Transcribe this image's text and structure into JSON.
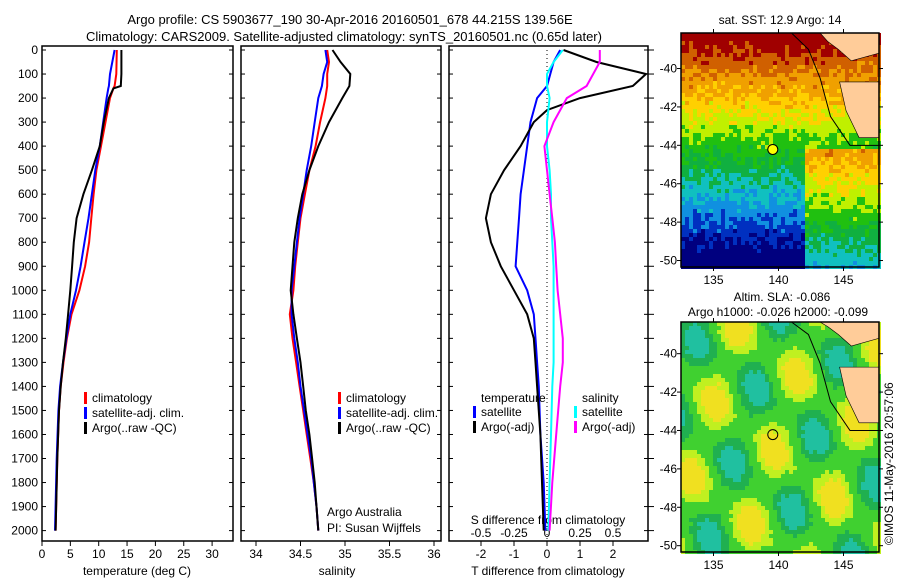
{
  "title_line1": "Argo profile: CS 5903677_190 30-Apr-2016 20160501_678 44.215S 139.56E",
  "title_line2": "Climatology: CARS2009. Satellite-adjusted climatology: synTS_20160501.nc (0.65d later)",
  "credit": "Argo Australia",
  "pi": "PI: Susan Wijffels",
  "timestamp": "©IMOS 11-May-2016 20:57:06",
  "colors": {
    "clim": "#ff0000",
    "sat": "#0000ff",
    "argo": "#000000",
    "sal_sat": "#00ffff",
    "sal_argo": "#ff00ff"
  },
  "chart_data": [
    {
      "type": "line",
      "name": "temperature",
      "xlabel": "temperature (deg C)",
      "ylabel": "",
      "xlim": [
        0,
        33
      ],
      "ylim": [
        2050,
        0
      ],
      "xticks": [
        0,
        5,
        10,
        15,
        20,
        25,
        30
      ],
      "yticks": [
        0,
        100,
        200,
        300,
        400,
        500,
        600,
        700,
        800,
        900,
        1000,
        1100,
        1200,
        1300,
        1400,
        1500,
        1600,
        1700,
        1800,
        1900,
        2000
      ],
      "legend": [
        "climatology",
        "satellite-adj. clim.",
        "Argo(..raw -QC)"
      ],
      "depth": [
        0,
        100,
        150,
        160,
        200,
        300,
        400,
        500,
        600,
        700,
        800,
        900,
        1000,
        1100,
        1200,
        1300,
        1400,
        1500,
        1700,
        2000
      ],
      "series": [
        {
          "name": "climatology",
          "values": [
            13.2,
            13.1,
            12.8,
            12.6,
            12.0,
            11.2,
            10.4,
            9.6,
            9.1,
            8.7,
            8.3,
            7.6,
            6.6,
            5.2,
            4.4,
            3.8,
            3.3,
            3.0,
            2.7,
            2.4
          ]
        },
        {
          "name": "satellite-adj. clim.",
          "values": [
            12.8,
            12.0,
            11.8,
            11.7,
            11.4,
            10.8,
            10.2,
            9.4,
            8.8,
            8.2,
            7.5,
            6.8,
            6.0,
            5.0,
            4.3,
            3.7,
            3.2,
            2.9,
            2.6,
            2.3
          ]
        },
        {
          "name": "Argo(..raw -QC)",
          "values": [
            14.0,
            14.0,
            13.9,
            12.6,
            11.8,
            10.9,
            10.2,
            8.8,
            7.3,
            6.1,
            5.6,
            5.3,
            5.0,
            4.6,
            4.2,
            3.7,
            3.3,
            3.0,
            2.7,
            2.4
          ]
        }
      ]
    },
    {
      "type": "line",
      "name": "salinity",
      "xlabel": "salinity",
      "xlim": [
        33.83,
        36.05
      ],
      "ylim": [
        2050,
        0
      ],
      "xticks": [
        34,
        34.5,
        35,
        35.5,
        36
      ],
      "legend": [
        "climatology",
        "satellite-adj. clim.",
        "Argo(..raw -QC)"
      ],
      "depth": [
        0,
        50,
        100,
        150,
        200,
        300,
        400,
        500,
        600,
        700,
        800,
        900,
        1000,
        1100,
        1200,
        1300,
        1400,
        1500,
        1600,
        1700,
        1800,
        1900,
        2000
      ],
      "series": [
        {
          "name": "climatology",
          "values": [
            34.8,
            34.82,
            34.8,
            34.8,
            34.78,
            34.72,
            34.67,
            34.6,
            34.55,
            34.5,
            34.47,
            34.44,
            34.42,
            34.38,
            34.41,
            34.45,
            34.49,
            34.53,
            34.57,
            34.61,
            34.65,
            34.68,
            34.7
          ]
        },
        {
          "name": "satellite-adj. clim.",
          "values": [
            34.78,
            34.8,
            34.76,
            34.74,
            34.7,
            34.66,
            34.62,
            34.57,
            34.53,
            34.49,
            34.46,
            34.43,
            34.4,
            34.4,
            34.43,
            34.47,
            34.5,
            34.54,
            34.58,
            34.62,
            34.65,
            34.68,
            34.7
          ]
        },
        {
          "name": "Argo(..raw -QC)",
          "values": [
            34.86,
            34.95,
            35.06,
            35.05,
            34.97,
            34.82,
            34.7,
            34.6,
            34.52,
            34.47,
            34.43,
            34.41,
            34.39,
            34.42,
            34.46,
            34.5,
            34.53,
            34.56,
            34.6,
            34.63,
            34.66,
            34.68,
            34.7
          ]
        }
      ]
    },
    {
      "type": "line",
      "name": "differences",
      "xlabel": "T difference from climatology",
      "xlabel2": "S difference from climatology",
      "xlim": [
        -3,
        3
      ],
      "xticks": [
        -2,
        -1,
        0,
        1,
        2
      ],
      "xticks_labels": [
        "-2",
        "-1",
        "0",
        "1",
        "2"
      ],
      "s_xticks": [
        -0.5,
        -0.25,
        0,
        0.25,
        0.5
      ],
      "s_xticks_labels": [
        "-0.5",
        "-0.25",
        "0",
        "0.25",
        "0.5"
      ],
      "legend_t_title": "temperature",
      "legend_s_title": "salinity",
      "legend": [
        "satellite",
        "Argo(-adj)",
        "satellite",
        "Argo(-adj)"
      ],
      "depth": [
        0,
        50,
        100,
        150,
        200,
        250,
        300,
        400,
        500,
        600,
        700,
        800,
        900,
        1000,
        1100,
        1200,
        1300,
        1400,
        1600,
        1800,
        2000
      ],
      "series": [
        {
          "name": "T satellite",
          "values": [
            0.4,
            0.2,
            0.1,
            0.0,
            -0.3,
            -0.4,
            -0.5,
            -0.6,
            -0.7,
            -0.8,
            -0.85,
            -0.9,
            -0.95,
            -0.6,
            -0.4,
            -0.35,
            -0.3,
            -0.25,
            -0.2,
            -0.1,
            -0.05
          ]
        },
        {
          "name": "T Argo(-adj)",
          "values": [
            0.5,
            1.5,
            3.0,
            2.6,
            1.0,
            0.0,
            -0.4,
            -0.8,
            -1.3,
            -1.7,
            -1.85,
            -1.7,
            -1.4,
            -1.0,
            -0.6,
            -0.4,
            -0.35,
            -0.3,
            -0.2,
            -0.15,
            -0.1
          ]
        },
        {
          "name": "S satellite",
          "values": [
            0.12,
            0.05,
            0.0,
            0.0,
            0.02,
            0.01,
            0.0,
            0.0,
            0.02,
            0.03,
            0.03,
            0.04,
            0.05,
            0.05,
            0.05,
            0.05,
            0.05,
            0.04,
            0.03,
            0.02,
            0.01
          ]
        },
        {
          "name": "S Argo(-adj)",
          "values": [
            0.4,
            0.4,
            0.35,
            0.3,
            0.15,
            0.1,
            0.05,
            -0.02,
            0.0,
            0.02,
            0.04,
            0.06,
            0.07,
            0.08,
            0.1,
            0.12,
            0.12,
            0.1,
            0.07,
            0.04,
            0.02
          ]
        }
      ]
    },
    {
      "type": "heatmap",
      "name": "sst-map",
      "title": "sat. SST: 12.9 Argo: 14",
      "xlim": [
        132.5,
        146.8
      ],
      "ylim": [
        -50.2,
        -38
      ],
      "xticks": [
        135,
        140,
        145
      ],
      "yticks": [
        -40,
        -42,
        -44,
        -46,
        -48,
        -50
      ],
      "argo_position": {
        "lon": 139.56,
        "lat": -44.215
      }
    },
    {
      "type": "heatmap",
      "name": "sla-map",
      "title": "Altim. SLA: -0.086",
      "subtitle": "Argo h1000: -0.026 h2000: -0.099",
      "xlim": [
        132.5,
        146.8
      ],
      "ylim": [
        -50.2,
        -38.5
      ],
      "xticks": [
        135,
        140,
        145
      ],
      "yticks": [
        -40,
        -42,
        -44,
        -46,
        -48,
        -50
      ],
      "argo_position": {
        "lon": 139.56,
        "lat": -44.215
      }
    }
  ]
}
